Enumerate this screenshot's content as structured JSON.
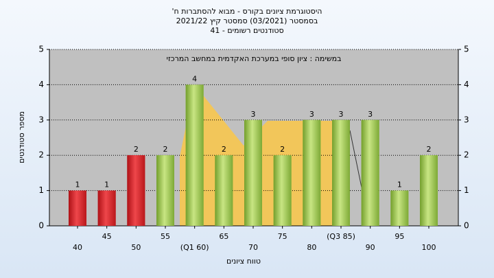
{
  "chart_data": {
    "type": "bar",
    "title": [
      "היסטוגרמת ציונים בקורס - מבוא להסתברות ח'",
      "בסמסטר (03/2021) סמסטר קיץ 2021/22",
      "סטודנטים רשומים - 41"
    ],
    "subtitle": "במשימה : ציון סופי במערכת האקדמית במחשב המרכזי",
    "x_label": "טווח ציונים",
    "y_label": "מספר סטודנטים",
    "categories": [
      "40",
      "45",
      "50",
      "55",
      "(Q1 60)",
      "65",
      "70",
      "75",
      "80",
      "(Q3 85)",
      "90",
      "95",
      "100"
    ],
    "values": [
      1,
      1,
      2,
      2,
      4,
      2,
      3,
      2,
      3,
      3,
      3,
      1,
      2
    ],
    "colors": [
      "#e0262b",
      "#e0262b",
      "#e0262b",
      "#9acd45",
      "#9acd45",
      "#9acd45",
      "#9acd45",
      "#9acd45",
      "#9acd45",
      "#9acd45",
      "#9acd45",
      "#9acd45",
      "#9acd45"
    ],
    "ylim": [
      0,
      5
    ],
    "yticks": [
      0,
      1,
      2,
      3,
      4,
      5
    ],
    "grid": true
  }
}
